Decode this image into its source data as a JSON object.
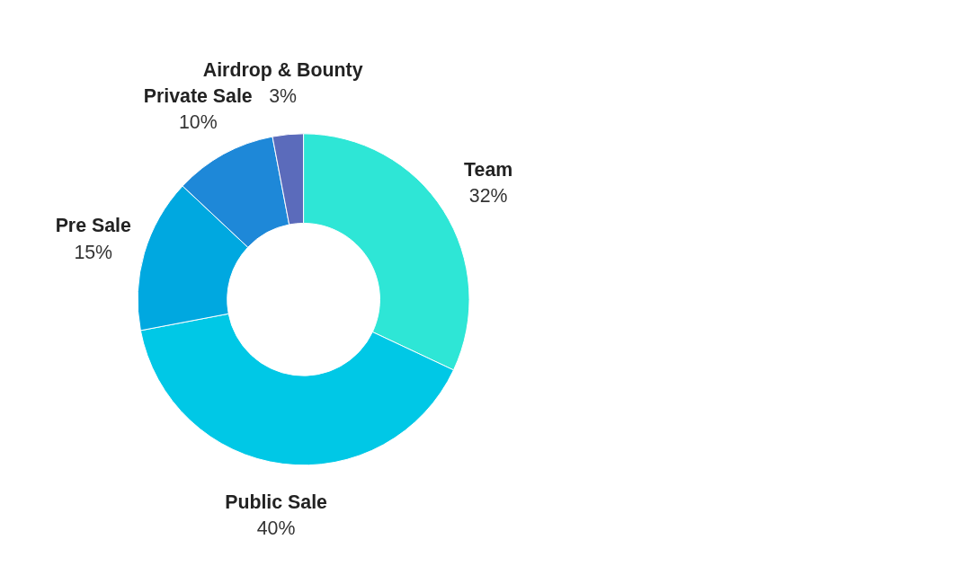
{
  "chart_data": {
    "type": "donut",
    "categories": [
      "Team",
      "Public Sale",
      "Pre Sale",
      "Private Sale",
      "Airdrop & Bounty"
    ],
    "values": [
      32,
      40,
      15,
      10,
      3
    ],
    "value_labels": [
      "32%",
      "40%",
      "15%",
      "10%",
      "3%"
    ],
    "colors": [
      "#2ee6d6",
      "#00c8e6",
      "#00a8e0",
      "#1e88d8",
      "#5b6bbb"
    ]
  }
}
